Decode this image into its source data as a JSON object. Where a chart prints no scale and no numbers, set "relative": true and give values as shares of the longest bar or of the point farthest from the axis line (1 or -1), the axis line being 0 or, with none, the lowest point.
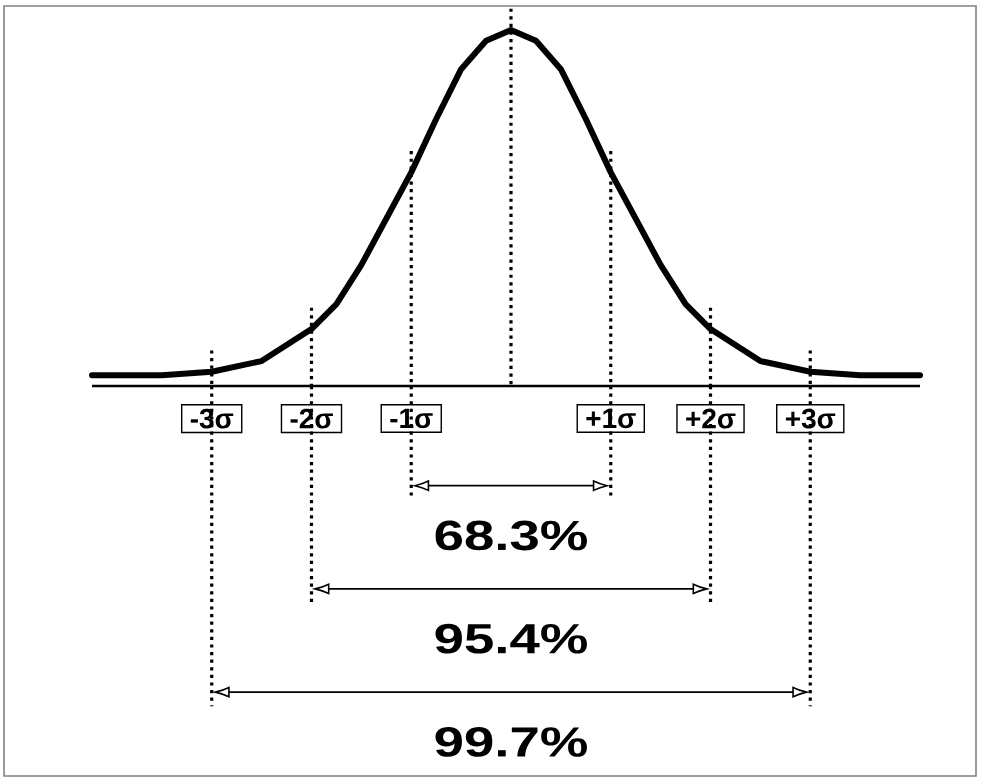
{
  "chart_data": {
    "type": "line",
    "relative": true,
    "x": [
      -4.2,
      -3.5,
      -3,
      -2.5,
      -2,
      -1.75,
      -1.5,
      -1.25,
      -1,
      -0.75,
      -0.5,
      -0.25,
      0,
      0.25,
      0.5,
      0.75,
      1,
      1.25,
      1.5,
      1.75,
      2,
      2.5,
      3,
      3.5,
      4.1
    ],
    "values": [
      0.03,
      0.03,
      0.04,
      0.07,
      0.16,
      0.23,
      0.34,
      0.47,
      0.6,
      0.75,
      0.89,
      0.97,
      1,
      0.97,
      0.89,
      0.75,
      0.6,
      0.47,
      0.34,
      0.23,
      0.16,
      0.07,
      0.04,
      0.03,
      0.03
    ],
    "color": "#000000",
    "xlim": [
      -4.2,
      4.1
    ],
    "xticks": [
      {
        "value": -3,
        "label": "-3σ"
      },
      {
        "value": -2,
        "label": "-2σ"
      },
      {
        "value": -1,
        "label": "-1σ"
      },
      {
        "value": 1,
        "label": "+1σ"
      },
      {
        "value": 2,
        "label": "+2σ"
      },
      {
        "value": 3,
        "label": "+3σ"
      }
    ],
    "ref_lines": [
      {
        "axis": "x",
        "value": -3,
        "line_style": "dotted",
        "color": "#000000"
      },
      {
        "axis": "x",
        "value": -2,
        "line_style": "dotted",
        "color": "#000000"
      },
      {
        "axis": "x",
        "value": -1,
        "line_style": "dotted",
        "color": "#000000"
      },
      {
        "axis": "x",
        "value": 0,
        "line_style": "dotted",
        "color": "#000000"
      },
      {
        "axis": "x",
        "value": 1,
        "line_style": "dotted",
        "color": "#000000"
      },
      {
        "axis": "x",
        "value": 2,
        "line_style": "dotted",
        "color": "#000000"
      },
      {
        "axis": "x",
        "value": 3,
        "line_style": "dotted",
        "color": "#000000"
      }
    ],
    "annotations": [
      "68.3%",
      "95.4%",
      "99.7%"
    ]
  }
}
